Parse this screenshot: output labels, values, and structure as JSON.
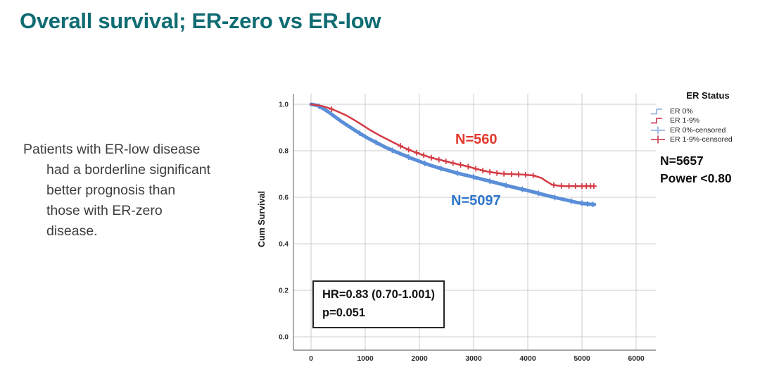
{
  "slide": {
    "title": "Overall survival; ER-zero vs ER-low"
  },
  "note": {
    "lines": [
      "Patients with ER-low disease",
      "had a borderline significant",
      "better prognosis than",
      "those with ER-zero",
      "disease."
    ]
  },
  "annotations": {
    "red_group_n": "N=560",
    "blue_group_n": "N=5097",
    "hr_line1": "HR=0.83 (0.70-1.001)",
    "hr_line2": "p=0.051",
    "total_n": "N=5657",
    "power": "Power <0.80"
  },
  "legend": {
    "title": "ER Status",
    "items": [
      {
        "label": "ER 0%",
        "color": "#98b6e6",
        "glyph": "step"
      },
      {
        "label": "ER 1-9%",
        "color": "#cf4a5f",
        "glyph": "step"
      },
      {
        "label": "ER 0%-censored",
        "color": "#98b6e6",
        "glyph": "censor"
      },
      {
        "label": "ER 1-9%-censored",
        "color": "#cf4a5f",
        "glyph": "censor"
      }
    ]
  },
  "colors": {
    "title_teal": "#106c73",
    "grid": "#cccccc",
    "axis": "#898989",
    "tick_text": "#2e2e2e",
    "red_label": "#e2392e",
    "blue_label": "#2e76cb"
  },
  "chart_data": {
    "type": "line",
    "title": "",
    "xlabel": "",
    "ylabel": "Cum Survival",
    "xlim": [
      -325,
      6400
    ],
    "ylim": [
      -0.057,
      1.045
    ],
    "xticks": [
      0,
      1000,
      2000,
      3000,
      4000,
      5000,
      6000
    ],
    "yticks": [
      0.0,
      0.2,
      0.4,
      0.6,
      0.8,
      1.0
    ],
    "grid": true,
    "legend_position": "right",
    "series": [
      {
        "name": "ER 0%",
        "n": 5097,
        "color": "#5a8ed8",
        "stroke_width": 5,
        "points": [
          [
            0,
            1.0
          ],
          [
            120,
            0.995
          ],
          [
            250,
            0.978
          ],
          [
            350,
            0.962
          ],
          [
            450,
            0.945
          ],
          [
            550,
            0.928
          ],
          [
            650,
            0.912
          ],
          [
            750,
            0.897
          ],
          [
            850,
            0.882
          ],
          [
            950,
            0.868
          ],
          [
            1050,
            0.854
          ],
          [
            1150,
            0.842
          ],
          [
            1250,
            0.83
          ],
          [
            1350,
            0.818
          ],
          [
            1450,
            0.807
          ],
          [
            1550,
            0.797
          ],
          [
            1650,
            0.787
          ],
          [
            1750,
            0.778
          ],
          [
            1850,
            0.768
          ],
          [
            1950,
            0.759
          ],
          [
            2050,
            0.75
          ],
          [
            2200,
            0.738
          ],
          [
            2350,
            0.727
          ],
          [
            2500,
            0.717
          ],
          [
            2650,
            0.707
          ],
          [
            2800,
            0.698
          ],
          [
            2950,
            0.69
          ],
          [
            3100,
            0.681
          ],
          [
            3250,
            0.672
          ],
          [
            3400,
            0.663
          ],
          [
            3550,
            0.654
          ],
          [
            3700,
            0.645
          ],
          [
            3850,
            0.637
          ],
          [
            4000,
            0.629
          ],
          [
            4150,
            0.62
          ],
          [
            4300,
            0.611
          ],
          [
            4450,
            0.602
          ],
          [
            4600,
            0.594
          ],
          [
            4750,
            0.586
          ],
          [
            4900,
            0.578
          ],
          [
            5030,
            0.573
          ],
          [
            5150,
            0.57
          ],
          [
            5230,
            0.569
          ]
        ],
        "censor_x": [
          150,
          900,
          1200,
          1500,
          1800,
          2100,
          2400,
          2700,
          3000,
          3300,
          3600,
          3900,
          4200,
          4500,
          4800,
          5000,
          5100,
          5200
        ]
      },
      {
        "name": "ER 1-9%",
        "n": 560,
        "color": "#d43b44",
        "stroke_width": 2.5,
        "points": [
          [
            0,
            1.0
          ],
          [
            200,
            0.993
          ],
          [
            350,
            0.982
          ],
          [
            500,
            0.968
          ],
          [
            650,
            0.952
          ],
          [
            800,
            0.932
          ],
          [
            950,
            0.91
          ],
          [
            1100,
            0.888
          ],
          [
            1250,
            0.868
          ],
          [
            1400,
            0.85
          ],
          [
            1550,
            0.832
          ],
          [
            1700,
            0.815
          ],
          [
            1850,
            0.8
          ],
          [
            2000,
            0.787
          ],
          [
            2150,
            0.775
          ],
          [
            2300,
            0.765
          ],
          [
            2450,
            0.757
          ],
          [
            2600,
            0.748
          ],
          [
            2750,
            0.74
          ],
          [
            2900,
            0.732
          ],
          [
            3050,
            0.722
          ],
          [
            3200,
            0.713
          ],
          [
            3350,
            0.707
          ],
          [
            3500,
            0.702
          ],
          [
            3650,
            0.7
          ],
          [
            3900,
            0.698
          ],
          [
            4100,
            0.694
          ],
          [
            4250,
            0.683
          ],
          [
            4350,
            0.668
          ],
          [
            4450,
            0.654
          ],
          [
            4550,
            0.65
          ],
          [
            4700,
            0.648
          ],
          [
            5230,
            0.648
          ]
        ],
        "censor_x": [
          380,
          1650,
          1800,
          1950,
          2080,
          2220,
          2360,
          2490,
          2620,
          2760,
          2900,
          3040,
          3170,
          3300,
          3430,
          3560,
          3700,
          3830,
          3960,
          4100,
          4480,
          4620,
          4760,
          4880,
          5000,
          5080,
          5160,
          5220
        ]
      }
    ]
  }
}
